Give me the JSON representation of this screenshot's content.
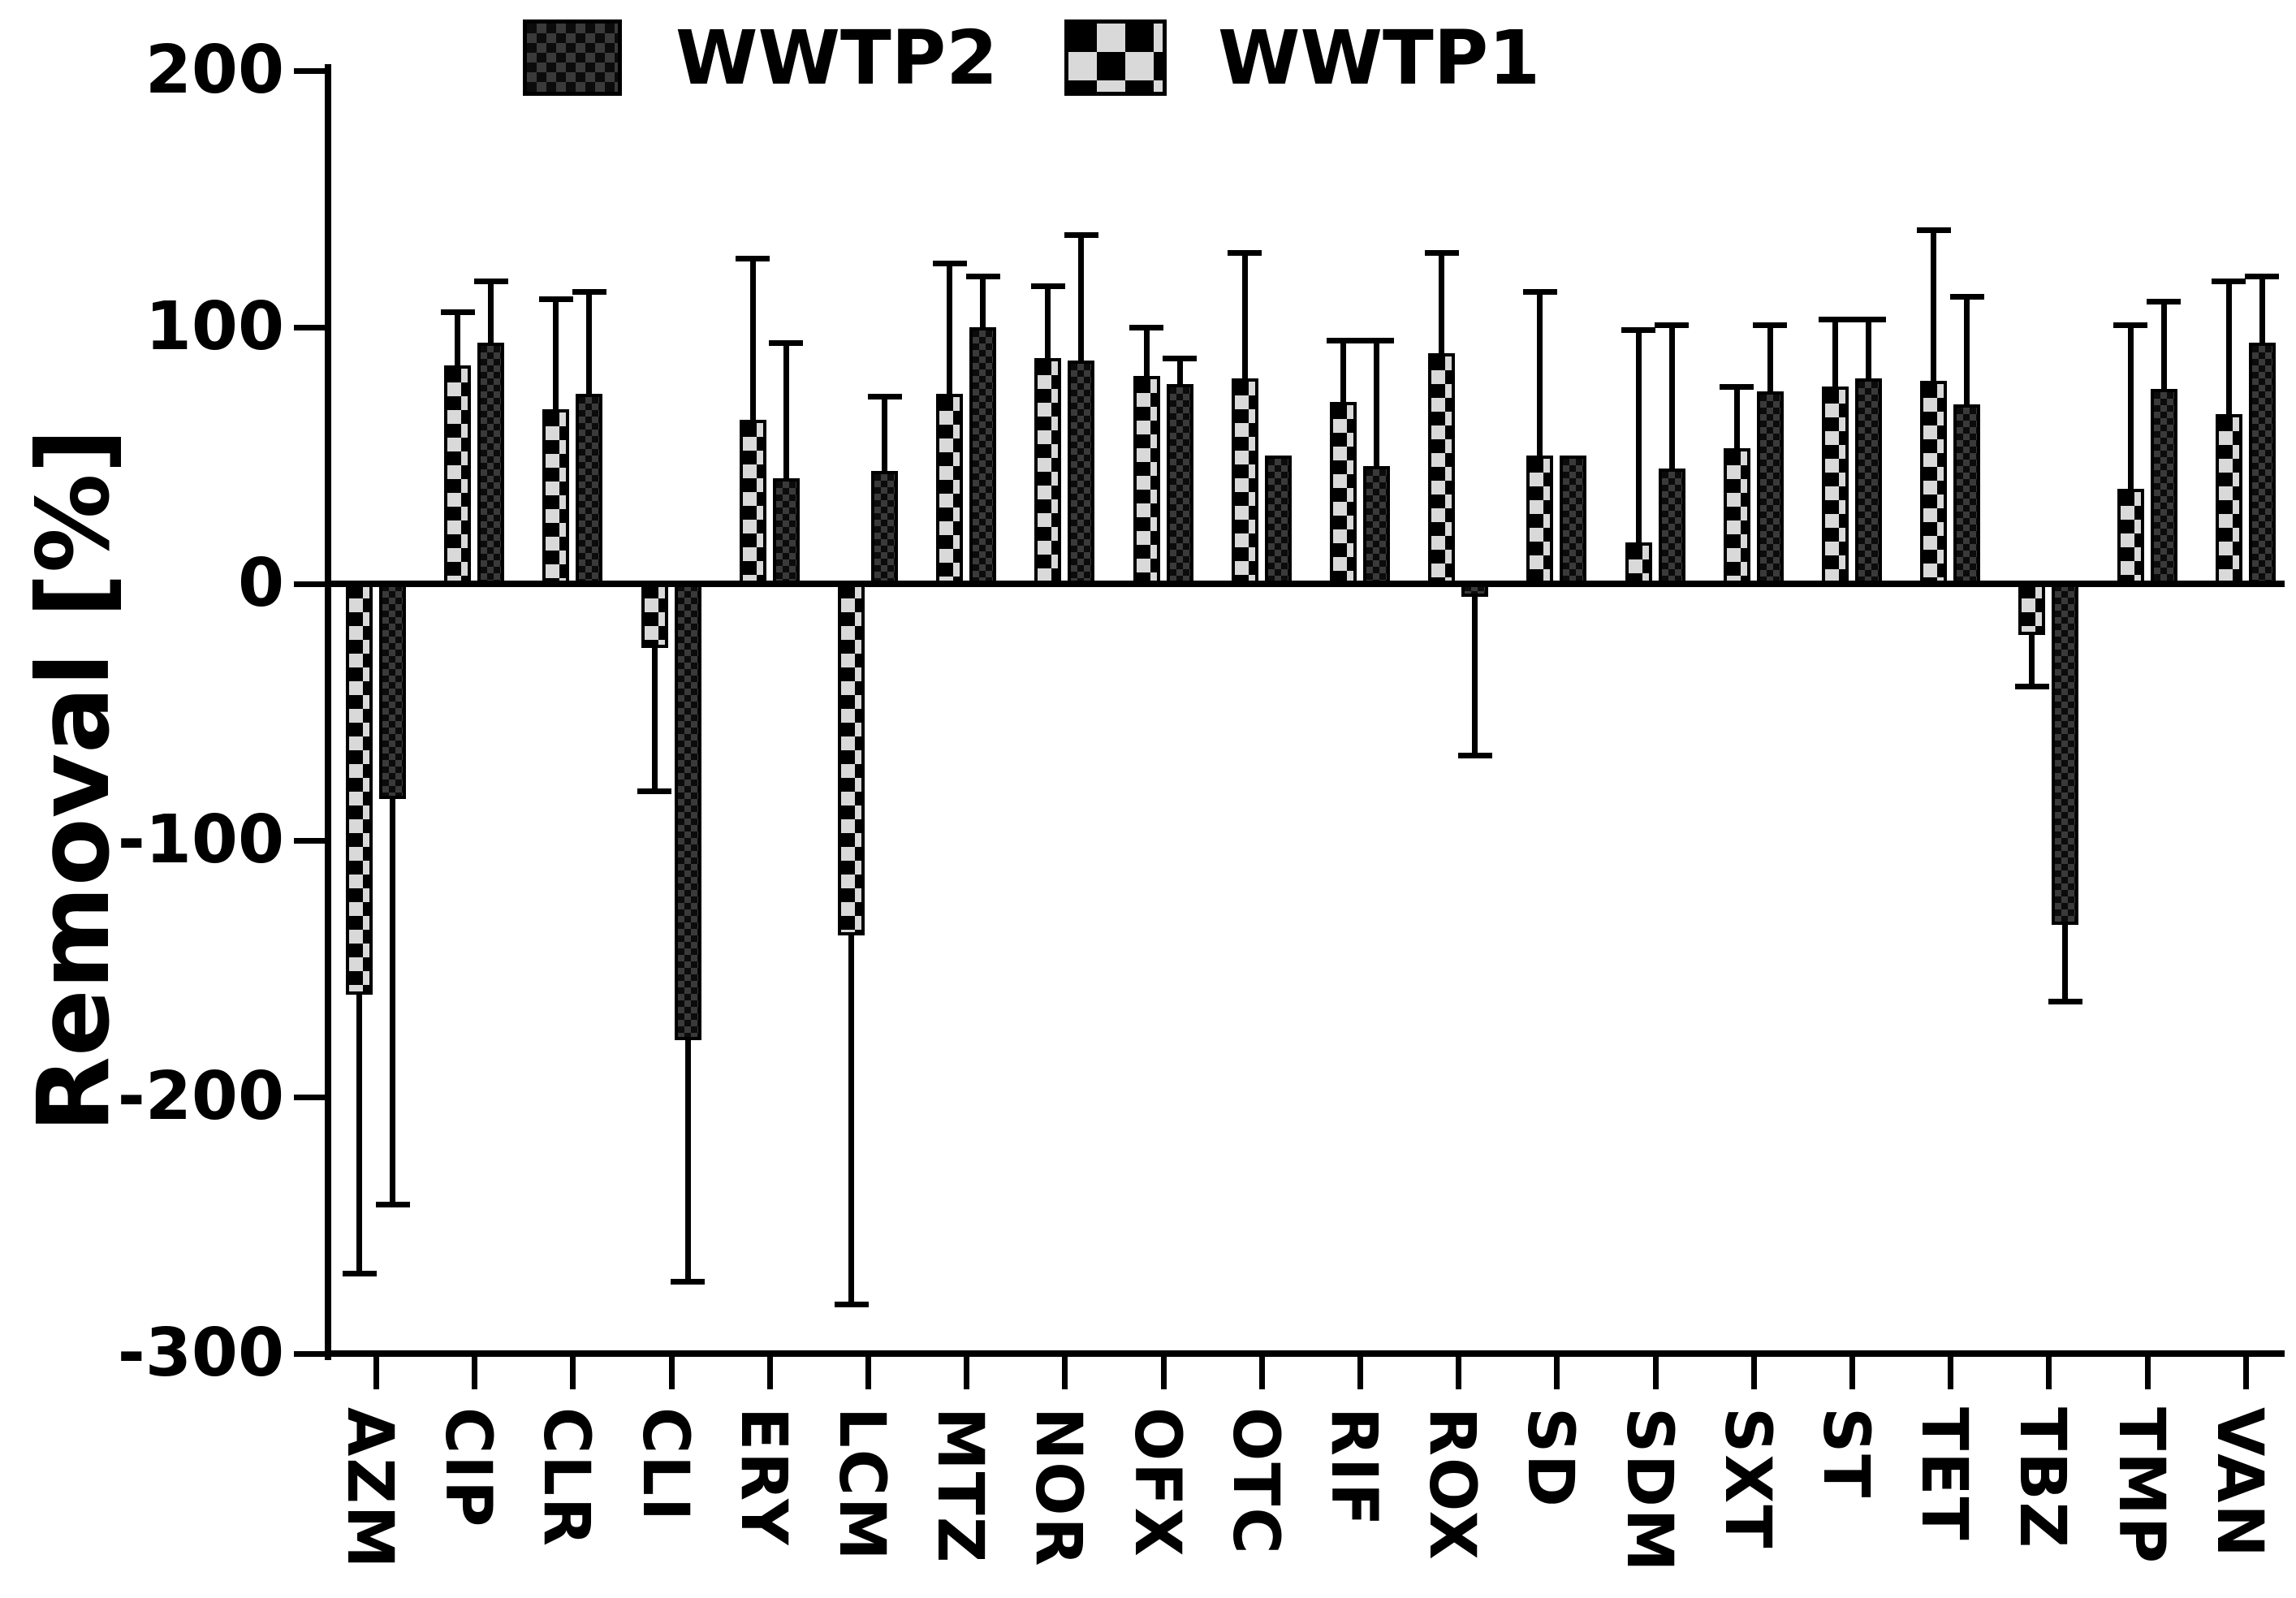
{
  "figure": {
    "background": "#ffffff",
    "ink_color": "#000000"
  },
  "legend": {
    "position": "top",
    "items": [
      {
        "label": "WWTP2",
        "series": "WWTP2",
        "pattern": "fine-checker"
      },
      {
        "label": "WWTP1",
        "series": "WWTP1",
        "pattern": "coarse-checker"
      }
    ]
  },
  "axis": {
    "ylabel": "Removal [%]",
    "y_tick_labels": [
      "200",
      "100",
      "0",
      "-100",
      "-200",
      "-300"
    ]
  },
  "chart_data": {
    "type": "bar",
    "title": "",
    "xlabel": "",
    "ylabel": "Removal [%]",
    "ylim": [
      -300,
      200
    ],
    "yticks": [
      200,
      100,
      0,
      -100,
      -200,
      -300
    ],
    "grid": false,
    "legend_position": "top",
    "bar_style": "grouped pairs, WWTP1 left (coarse black/light-gray checkerboard), WWTP2 right (fine dark checkerboard), black error whiskers pointing away from zero",
    "categories": [
      "AZM",
      "CIP",
      "CLR",
      "CLI",
      "ERY",
      "LCM",
      "MTZ",
      "NOR",
      "OFX",
      "OTC",
      "RIF",
      "ROX",
      "SD",
      "SDM",
      "SXT",
      "ST",
      "TET",
      "TBZ",
      "TMP",
      "VAN"
    ],
    "series": [
      {
        "name": "WWTP1",
        "pattern": "coarse-checker",
        "fill": "#d9d9d9",
        "alt_fill": "#000000",
        "values": [
          -160,
          85,
          68,
          -25,
          64,
          -137,
          74,
          88,
          81,
          80,
          71,
          90,
          50,
          16,
          53,
          77,
          79,
          -20,
          37,
          66
        ],
        "errors": [
          110,
          22,
          44,
          57,
          64,
          145,
          52,
          29,
          20,
          50,
          25,
          40,
          65,
          84,
          25,
          27,
          60,
          21,
          65,
          53
        ]
      },
      {
        "name": "WWTP2",
        "pattern": "fine-checker",
        "fill": "#0b0b0b",
        "alt_fill": "#3a3a3a",
        "values": [
          -84,
          94,
          74,
          -178,
          41,
          44,
          100,
          87,
          78,
          50,
          46,
          -5,
          50,
          45,
          75,
          80,
          70,
          -133,
          76,
          94
        ],
        "errors": [
          159,
          25,
          41,
          95,
          54,
          30,
          21,
          50,
          11,
          0,
          50,
          63,
          0,
          57,
          27,
          24,
          43,
          31,
          35,
          27
        ]
      }
    ]
  }
}
